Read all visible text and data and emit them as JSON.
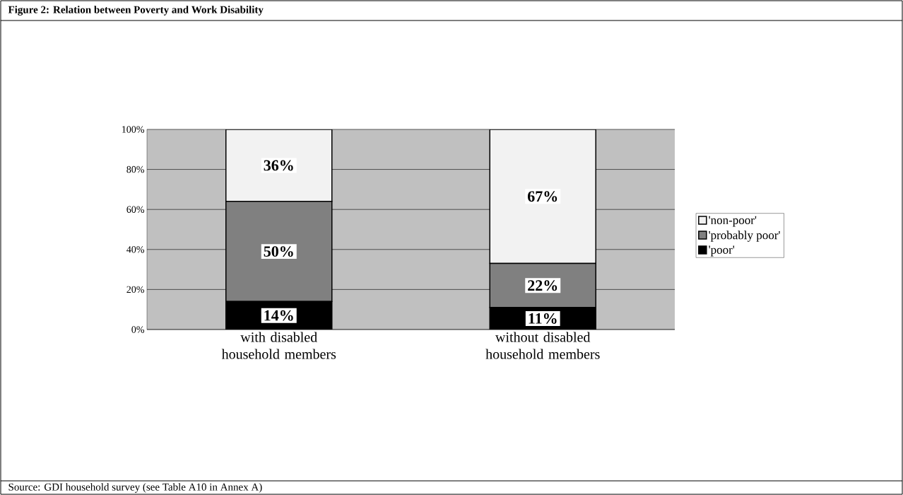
{
  "chart_data": {
    "type": "bar",
    "stacked": true,
    "title": "Figure 2: Relation between Poverty and Work Disability",
    "categories": [
      "with disabled household members",
      "without disabled household members"
    ],
    "series": [
      {
        "name": "'poor'",
        "color": "#000000",
        "values": [
          14,
          11
        ],
        "value_labels": [
          "14%",
          "11%"
        ]
      },
      {
        "name": "'probably poor'",
        "color": "#808080",
        "values": [
          50,
          22
        ],
        "value_labels": [
          "50%",
          "22%"
        ]
      },
      {
        "name": "'non-poor'",
        "color": "#f2f2f2",
        "values": [
          36,
          67
        ],
        "value_labels": [
          "36%",
          "67%"
        ]
      }
    ],
    "ylim": [
      0,
      100
    ],
    "yticks": [
      {
        "value": 0,
        "label": "0%"
      },
      {
        "value": 20,
        "label": "20%"
      },
      {
        "value": 40,
        "label": "40%"
      },
      {
        "value": 60,
        "label": "60%"
      },
      {
        "value": 80,
        "label": "80%"
      },
      {
        "value": 100,
        "label": "100%"
      }
    ],
    "grid": "y",
    "legend": "right",
    "annotations": [
      "Source:     GDI household survey (see Table A10 in Annex A)"
    ]
  }
}
